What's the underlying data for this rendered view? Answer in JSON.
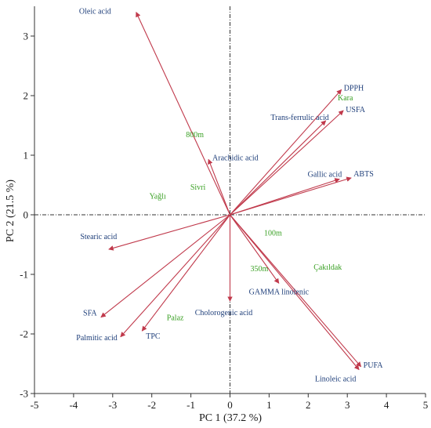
{
  "chart_data": {
    "type": "biplot",
    "xlabel": "PC 1  (37.2 %)",
    "ylabel": "PC 2  (21.5 %)",
    "xlim": [
      -5,
      5
    ],
    "ylim": [
      -3,
      3.5
    ],
    "xticks": [
      -5,
      -4,
      -3,
      -2,
      -1,
      0,
      1,
      2,
      3,
      4,
      5
    ],
    "yticks": [
      -3,
      -2,
      -1,
      0,
      1,
      2,
      3
    ],
    "colors": {
      "vector": "#c0394b",
      "variable_label": "#1f3f7a",
      "site_label": "#3aa024"
    },
    "vectors": [
      {
        "name": "Oleic acid",
        "x": -2.4,
        "y": 3.4
      },
      {
        "name": "DPPH",
        "x": 2.85,
        "y": 2.1
      },
      {
        "name": "USFA",
        "x": 2.9,
        "y": 1.75
      },
      {
        "name": "Trans-ferrulic acid",
        "x": 2.45,
        "y": 1.58
      },
      {
        "name": "Gallic acid",
        "x": 2.8,
        "y": 0.6
      },
      {
        "name": "ABTS",
        "x": 3.1,
        "y": 0.62
      },
      {
        "name": "Arachidic acid",
        "x": -0.55,
        "y": 0.93
      },
      {
        "name": "Stearic acid",
        "x": -3.1,
        "y": -0.58
      },
      {
        "name": "SFA",
        "x": -3.3,
        "y": -1.72
      },
      {
        "name": "Palmitic acid",
        "x": -2.8,
        "y": -2.05
      },
      {
        "name": "TPC",
        "x": -2.25,
        "y": -1.95
      },
      {
        "name": "Cholorogenic acid",
        "x": 0,
        "y": -1.45
      },
      {
        "name": "GAMMA linolenic",
        "x": 1.25,
        "y": -1.15
      },
      {
        "name": "PUFA",
        "x": 3.35,
        "y": -2.55
      },
      {
        "name": "Linoleic acid",
        "x": 3.3,
        "y": -2.6
      }
    ],
    "sites": [
      {
        "name": "800m",
        "x": -0.9,
        "y": 1.3
      },
      {
        "name": "Kara",
        "x": 2.95,
        "y": 1.92
      },
      {
        "name": "Sivri",
        "x": -0.82,
        "y": 0.42
      },
      {
        "name": "Yağlı",
        "x": -1.85,
        "y": 0.27
      },
      {
        "name": "100m",
        "x": 1.1,
        "y": -0.35
      },
      {
        "name": "Çakıldak",
        "x": 2.5,
        "y": -0.92
      },
      {
        "name": "350m",
        "x": 0.75,
        "y": -0.95
      },
      {
        "name": "Palaz",
        "x": -1.4,
        "y": -1.77
      }
    ]
  }
}
